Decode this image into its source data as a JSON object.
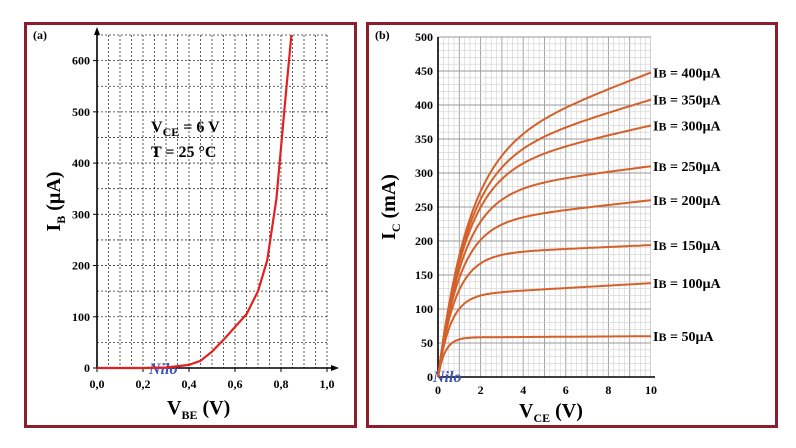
{
  "chart_data": [
    {
      "type": "line",
      "panel_label": "(a)",
      "xlabel": "V",
      "xlabel_sub": "BE",
      "xlabel_unit": "(V)",
      "ylabel": "I",
      "ylabel_sub": "B",
      "ylabel_unit": "(µA)",
      "xlim": [
        0,
        1.0
      ],
      "ylim": [
        0,
        650
      ],
      "xticks": [
        "0,0",
        "0,2",
        "0,4",
        "0,6",
        "0,8",
        "1,0"
      ],
      "xtick_values": [
        0,
        0.2,
        0.4,
        0.6,
        0.8,
        1.0
      ],
      "yticks": [
        0,
        100,
        200,
        300,
        400,
        500,
        600
      ],
      "grid": true,
      "annotations": {
        "vce_main": "V",
        "vce_sub": "CE",
        "vce_val": " = 6 V",
        "temp": "T = 25 °C"
      },
      "watermark": "Nilo",
      "series": [
        {
          "color": "#e32020",
          "x": [
            0,
            0.1,
            0.2,
            0.3,
            0.4,
            0.45,
            0.5,
            0.55,
            0.6,
            0.65,
            0.7,
            0.74,
            0.78,
            0.8,
            0.82,
            0.845
          ],
          "y": [
            0,
            0,
            0,
            1,
            6,
            14,
            32,
            55,
            80,
            105,
            150,
            210,
            330,
            430,
            530,
            650
          ]
        }
      ]
    },
    {
      "type": "line",
      "panel_label": "(b)",
      "xlabel": "V",
      "xlabel_sub": "CE",
      "xlabel_unit": "(V)",
      "ylabel": "I",
      "ylabel_sub": "C",
      "ylabel_unit": "(mA)",
      "xlim": [
        0,
        10
      ],
      "ylim": [
        0,
        500
      ],
      "xticks": [
        0,
        2,
        4,
        6,
        8,
        10
      ],
      "yticks": [
        0,
        50,
        100,
        150,
        200,
        250,
        300,
        350,
        400,
        450,
        500
      ],
      "grid": true,
      "watermark": "Nilo",
      "series": [
        {
          "name": "I",
          "name_sub": "B",
          "name_val": " = 50µA",
          "color": "#d4602a",
          "plateau": 58,
          "y_end": 60
        },
        {
          "name": "I",
          "name_sub": "B",
          "name_val": " = 100µA",
          "color": "#d4602a",
          "plateau": 120,
          "y_end": 138
        },
        {
          "name": "I",
          "name_sub": "B",
          "name_val": " = 150µA",
          "color": "#d4602a",
          "plateau": 180,
          "y_end": 194
        },
        {
          "name": "I",
          "name_sub": "B",
          "name_val": " = 200µA",
          "color": "#d4602a",
          "plateau": 225,
          "y_end": 260
        },
        {
          "name": "I",
          "name_sub": "B",
          "name_val": " = 250µA",
          "color": "#d4602a",
          "plateau": 270,
          "y_end": 310
        },
        {
          "name": "I",
          "name_sub": "B",
          "name_val": " = 300µA",
          "color": "#d4602a",
          "plateau": 300,
          "y_end": 370
        },
        {
          "name": "I",
          "name_sub": "B",
          "name_val": " = 350µA",
          "color": "#d4602a",
          "plateau": 315,
          "y_end": 408
        },
        {
          "name": "I",
          "name_sub": "B",
          "name_val": " = 400µA",
          "color": "#d4602a",
          "plateau": 330,
          "y_end": 448
        }
      ]
    }
  ]
}
